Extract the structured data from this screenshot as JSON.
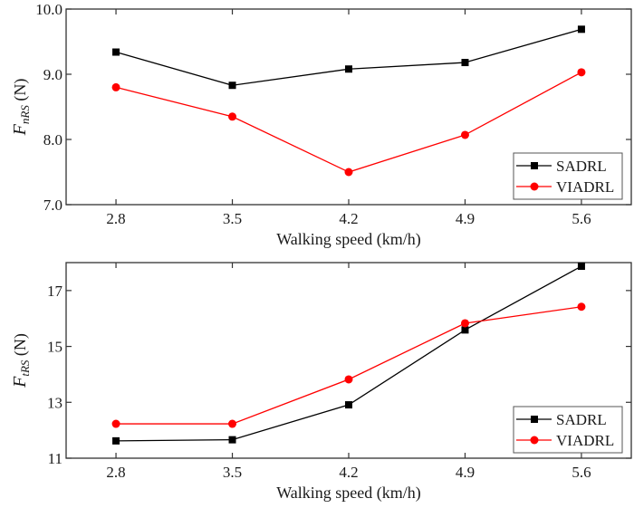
{
  "chart_data": [
    {
      "type": "line",
      "title": "",
      "xlabel": "Walking speed (km/h)",
      "ylabel": {
        "main": "F",
        "subscript": "nRS",
        "unit": " (N)"
      },
      "x": [
        2.8,
        3.5,
        4.2,
        4.9,
        5.6
      ],
      "x_tick_labels": [
        "2.8",
        "3.5",
        "4.2",
        "4.9",
        "5.6"
      ],
      "xlim": [
        2.5,
        5.9
      ],
      "ylim": [
        7.0,
        10.0
      ],
      "y_ticks": [
        7.0,
        8.0,
        9.0,
        10.0
      ],
      "y_tick_labels": [
        "7.0",
        "8.0",
        "9.0",
        "10.0"
      ],
      "grid": false,
      "legend_position": "bottom-right",
      "series": [
        {
          "name": "SADRL",
          "color": "#000000",
          "marker": "square",
          "values": [
            9.34,
            8.83,
            9.08,
            9.18,
            9.69
          ]
        },
        {
          "name": "VIADRL",
          "color": "#ff0000",
          "marker": "circle",
          "values": [
            8.8,
            8.35,
            7.5,
            8.07,
            9.03
          ]
        }
      ]
    },
    {
      "type": "line",
      "title": "",
      "xlabel": "Walking speed (km/h)",
      "ylabel": {
        "main": "F",
        "subscript": "tRS",
        "unit": " (N)"
      },
      "x": [
        2.8,
        3.5,
        4.2,
        4.9,
        5.6
      ],
      "x_tick_labels": [
        "2.8",
        "3.5",
        "4.2",
        "4.9",
        "5.6"
      ],
      "xlim": [
        2.5,
        5.9
      ],
      "ylim": [
        11,
        18
      ],
      "y_ticks": [
        11,
        13,
        15,
        17
      ],
      "y_tick_labels": [
        "11",
        "13",
        "15",
        "17"
      ],
      "grid": false,
      "legend_position": "bottom-right",
      "series": [
        {
          "name": "SADRL",
          "color": "#000000",
          "marker": "square",
          "values": [
            11.62,
            11.66,
            12.91,
            15.59,
            17.87
          ]
        },
        {
          "name": "VIADRL",
          "color": "#ff0000",
          "marker": "circle",
          "values": [
            12.23,
            12.23,
            13.82,
            15.83,
            16.42
          ]
        }
      ]
    }
  ]
}
